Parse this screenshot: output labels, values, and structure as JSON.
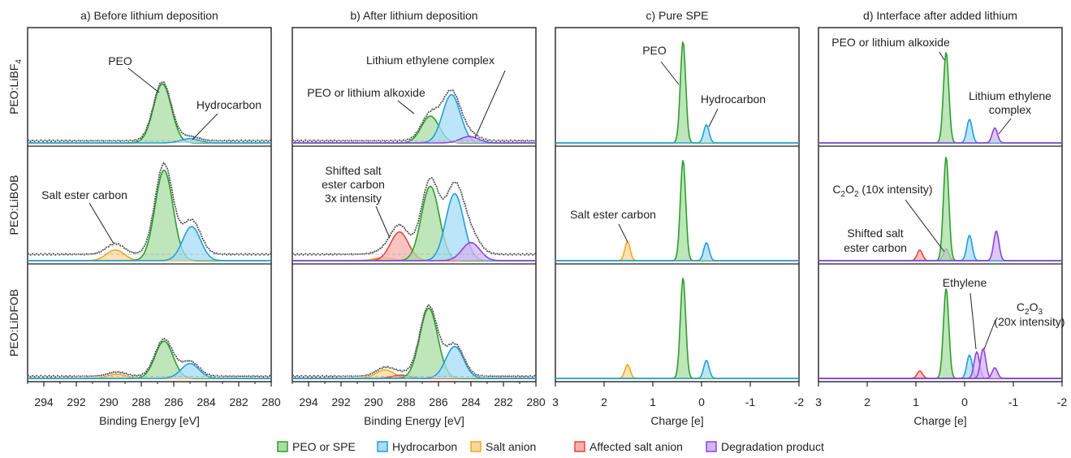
{
  "colors": {
    "peo": "#2ca02c",
    "peo_fill": "#a9dca3",
    "hc": "#1f9fe0",
    "hc_fill": "#a6dcf7",
    "salt": "#f5a623",
    "salt_fill": "#fbd89a",
    "affected": "#e8443a",
    "affected_fill": "#f6b0ab",
    "deg": "#8e44dd",
    "deg_fill": "#d3b4f2",
    "data": "#555555"
  },
  "row_labels": [
    "PEO:LiBF4",
    "PEO:LiBOB",
    "PEO:LiDFOB"
  ],
  "legend": [
    {
      "label": "PEO or SPE",
      "key": "peo"
    },
    {
      "label": "Hydrocarbon",
      "key": "hc"
    },
    {
      "label": "Salt anion",
      "key": "salt"
    },
    {
      "label": "Affected salt anion",
      "key": "affected"
    },
    {
      "label": "Degradation product",
      "key": "deg"
    }
  ],
  "chart_data": [
    {
      "type": "area",
      "title": "a) Before lithium deposition",
      "xlabel": "Binding Energy [eV]",
      "xlim": [
        295,
        280
      ],
      "x_reversed": true,
      "xticks": [
        294,
        292,
        290,
        288,
        286,
        284,
        282,
        280
      ],
      "rows": [
        {
          "row": "PEO:LiBF4",
          "peaks": [
            {
              "component": "PEO or SPE",
              "center": 286.7,
              "height": 0.55
            },
            {
              "component": "Hydrocarbon",
              "center": 285.0,
              "height": 0.04
            }
          ]
        },
        {
          "row": "PEO:LiBOB",
          "peaks": [
            {
              "component": "Salt anion",
              "center": 289.6,
              "height": 0.1
            },
            {
              "component": "PEO or SPE",
              "center": 286.6,
              "height": 0.85
            },
            {
              "component": "Hydrocarbon",
              "center": 284.9,
              "height": 0.32
            }
          ]
        },
        {
          "row": "PEO:LiDFOB",
          "peaks": [
            {
              "component": "Salt anion",
              "center": 289.5,
              "height": 0.04
            },
            {
              "component": "PEO or SPE",
              "center": 286.6,
              "height": 0.35
            },
            {
              "component": "Hydrocarbon",
              "center": 285.0,
              "height": 0.14
            }
          ]
        }
      ],
      "annotations": [
        "PEO",
        "Hydrocarbon",
        "Salt ester carbon"
      ]
    },
    {
      "type": "area",
      "title": "b) After lithium deposition",
      "xlabel": "Binding Energy [eV]",
      "xlim": [
        295,
        280
      ],
      "x_reversed": true,
      "xticks": [
        294,
        292,
        290,
        288,
        286,
        284,
        282,
        280
      ],
      "rows": [
        {
          "row": "PEO:LiBF4",
          "peaks": [
            {
              "component": "PEO or SPE",
              "center": 286.5,
              "height": 0.25
            },
            {
              "component": "Hydrocarbon",
              "center": 285.2,
              "height": 0.45
            },
            {
              "component": "Degradation product",
              "center": 284.1,
              "height": 0.06
            }
          ]
        },
        {
          "row": "PEO:LiBOB",
          "peaks": [
            {
              "component": "Salt anion",
              "center": 289.4,
              "height": 0.03
            },
            {
              "component": "Affected salt anion",
              "center": 288.4,
              "height": 0.27
            },
            {
              "component": "PEO or SPE",
              "center": 286.5,
              "height": 0.7
            },
            {
              "component": "Hydrocarbon",
              "center": 285.0,
              "height": 0.63
            },
            {
              "component": "Degradation product",
              "center": 284.0,
              "height": 0.17
            }
          ]
        },
        {
          "row": "PEO:LiDFOB",
          "peaks": [
            {
              "component": "Salt anion",
              "center": 289.3,
              "height": 0.08
            },
            {
              "component": "Affected salt anion",
              "center": 288.3,
              "height": 0.03
            },
            {
              "component": "PEO or SPE",
              "center": 286.6,
              "height": 0.66
            },
            {
              "component": "Hydrocarbon",
              "center": 285.0,
              "height": 0.3
            }
          ]
        }
      ],
      "annotations": [
        "Lithium ethylene complex",
        "PEO or lithium alkoxide",
        "Shifted salt ester carbon 3x intensity"
      ]
    },
    {
      "type": "area",
      "title": "c) Pure SPE",
      "xlabel": "Charge [e]",
      "xlim": [
        3,
        -2
      ],
      "x_reversed": true,
      "xticks": [
        3,
        2,
        1,
        0,
        -1,
        -2
      ],
      "rows": [
        {
          "row": "PEO:LiBF4",
          "peaks": [
            {
              "component": "PEO or SPE",
              "center": 0.38,
              "height": 0.95
            },
            {
              "component": "Hydrocarbon",
              "center": -0.1,
              "height": 0.17
            }
          ]
        },
        {
          "row": "PEO:LiBOB",
          "peaks": [
            {
              "component": "Salt anion",
              "center": 1.52,
              "height": 0.18
            },
            {
              "component": "PEO or SPE",
              "center": 0.38,
              "height": 0.95
            },
            {
              "component": "Hydrocarbon",
              "center": -0.1,
              "height": 0.17
            }
          ]
        },
        {
          "row": "PEO:LiDFOB",
          "peaks": [
            {
              "component": "Salt anion",
              "center": 1.52,
              "height": 0.13
            },
            {
              "component": "PEO or SPE",
              "center": 0.38,
              "height": 0.95
            },
            {
              "component": "Hydrocarbon",
              "center": -0.1,
              "height": 0.17
            }
          ]
        }
      ],
      "annotations": [
        "PEO",
        "Hydrocarbon",
        "Salt ester carbon"
      ]
    },
    {
      "type": "area",
      "title": "d) Interface after added lithium",
      "xlabel": "Charge [e]",
      "xlim": [
        3,
        -2
      ],
      "x_reversed": true,
      "xticks": [
        3,
        2,
        1,
        0,
        -1,
        -2
      ],
      "rows": [
        {
          "row": "PEO:LiBF4",
          "peaks": [
            {
              "component": "PEO or SPE",
              "center": 0.38,
              "height": 0.85
            },
            {
              "component": "Hydrocarbon",
              "center": -0.1,
              "height": 0.22
            },
            {
              "component": "Degradation product",
              "center": -0.62,
              "height": 0.14
            }
          ]
        },
        {
          "row": "PEO:LiBOB",
          "peaks": [
            {
              "component": "Affected salt anion",
              "center": 0.92,
              "height": 0.1
            },
            {
              "component": "Degradation product",
              "center": 0.38,
              "height": 0.11
            },
            {
              "component": "PEO or SPE",
              "center": 0.38,
              "height": 0.98
            },
            {
              "component": "Hydrocarbon",
              "center": -0.1,
              "height": 0.24
            },
            {
              "component": "Degradation product",
              "center": -0.65,
              "height": 0.28
            }
          ]
        },
        {
          "row": "PEO:LiDFOB",
          "peaks": [
            {
              "component": "Affected salt anion",
              "center": 0.92,
              "height": 0.07
            },
            {
              "component": "PEO or SPE",
              "center": 0.38,
              "height": 0.85
            },
            {
              "component": "Hydrocarbon",
              "center": -0.1,
              "height": 0.22
            },
            {
              "component": "Degradation product",
              "center": -0.25,
              "height": 0.25
            },
            {
              "component": "Degradation product",
              "center": -0.38,
              "height": 0.28
            },
            {
              "component": "Degradation product",
              "center": -0.62,
              "height": 0.1
            }
          ]
        }
      ],
      "annotations": [
        "PEO or lithium alkoxide",
        "Lithium ethylene complex",
        "C2O2 (10x intensity)",
        "Shifted salt ester carbon",
        "Ethylene",
        "C2O3 (20x intensity)"
      ]
    }
  ],
  "text": {
    "a_peo": "PEO",
    "a_hc": "Hydrocarbon",
    "a_salt": "Salt ester carbon",
    "b_lec": "Lithium ethylene complex",
    "b_alk": "PEO or lithium alkoxide",
    "b_shift1": "Shifted salt",
    "b_shift2": "ester carbon",
    "b_shift3": "3x intensity",
    "c_peo": "PEO",
    "c_hc": "Hydrocarbon",
    "c_salt": "Salt ester carbon",
    "d_alk": "PEO or lithium alkoxide",
    "d_lec1": "Lithium ethylene",
    "d_lec2": "complex",
    "d_c2o2_a": "C",
    "d_c2o2_b": "2",
    "d_c2o2_c": "O",
    "d_c2o2_d": "2",
    "d_c2o2_e": " (10x intensity)",
    "d_shift1": "Shifted salt",
    "d_shift2": "ester carbon",
    "d_eth": "Ethylene",
    "d_c2o3_a": "C",
    "d_c2o3_b": "2",
    "d_c2o3_c": "O",
    "d_c2o3_d": "3",
    "d_c2o3_e": "(20x intensity)"
  }
}
